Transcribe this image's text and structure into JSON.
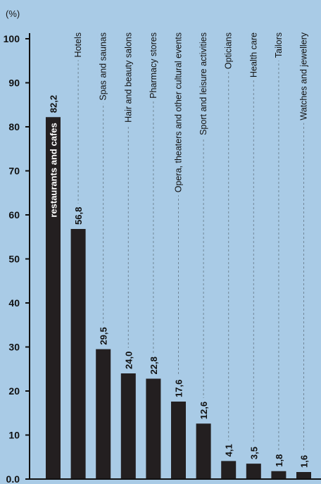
{
  "chart_data": {
    "type": "bar",
    "unit_label": "(%)",
    "ytick_labels": [
      "0.0",
      "10",
      "20",
      "30",
      "40",
      "50",
      "60",
      "70",
      "80",
      "90",
      "100"
    ],
    "ylim": [
      0,
      100
    ],
    "categories": [
      "restaurants and cafes",
      "Hotels",
      "Spas and saunas",
      "Hair and beauty salons",
      "Pharmacy stores",
      "Opera, theaters and other cultural events",
      "Sport and leisure activities",
      "Opticians",
      "Health care",
      "Tailors",
      "Watches and jewellery"
    ],
    "values": [
      82.2,
      56.8,
      29.5,
      24.0,
      22.8,
      17.6,
      12.6,
      4.1,
      3.5,
      1.8,
      1.6
    ],
    "value_labels": [
      "82,2",
      "56,8",
      "29,5",
      "24,0",
      "22,8",
      "17,6",
      "12,6",
      "4,1",
      "3,5",
      "1,8",
      "1,6"
    ],
    "colors": {
      "background": "#a9cbe6",
      "bar": "#231f20",
      "axis": "#111111",
      "guide": "#6b7f8f"
    },
    "grid": false
  }
}
